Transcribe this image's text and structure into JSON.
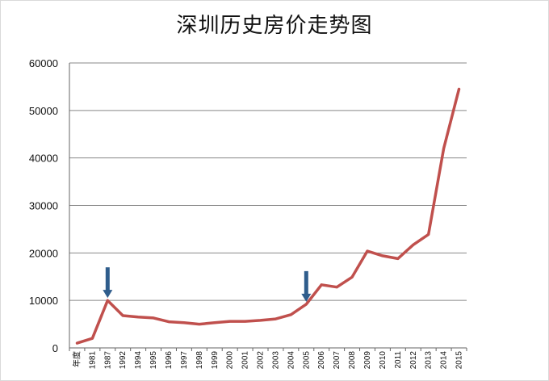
{
  "chart_data": {
    "type": "line",
    "title": "深圳历史房价走势图",
    "xlabel": "",
    "ylabel": "",
    "categories": [
      "年度",
      "1981",
      "1987",
      "1992",
      "1994",
      "1995",
      "1996",
      "1997",
      "1998",
      "1999",
      "2000",
      "2001",
      "2002",
      "2003",
      "2004",
      "2005",
      "2006",
      "2007",
      "2008",
      "2009",
      "2010",
      "2011",
      "2012",
      "2013",
      "2014",
      "2015"
    ],
    "series": [
      {
        "values": [
          1000,
          2000,
          10000,
          6800,
          6500,
          6300,
          5500,
          5300,
          5000,
          5300,
          5600,
          5600,
          5800,
          6100,
          7000,
          9200,
          13300,
          12800,
          14900,
          20400,
          19400,
          18800,
          21700,
          23900,
          42000,
          54500
        ]
      }
    ],
    "yticks": [
      "0",
      "10000",
      "20000",
      "30000",
      "40000",
      "50000",
      "60000"
    ],
    "ylim": [
      0,
      60000
    ],
    "grid": true,
    "legend": "none",
    "line_color": "#c0504d",
    "arrow_color": "#2f5d8c",
    "annotations": [
      {
        "type": "arrow",
        "category": "1987"
      },
      {
        "type": "arrow",
        "category": "2005"
      }
    ]
  }
}
